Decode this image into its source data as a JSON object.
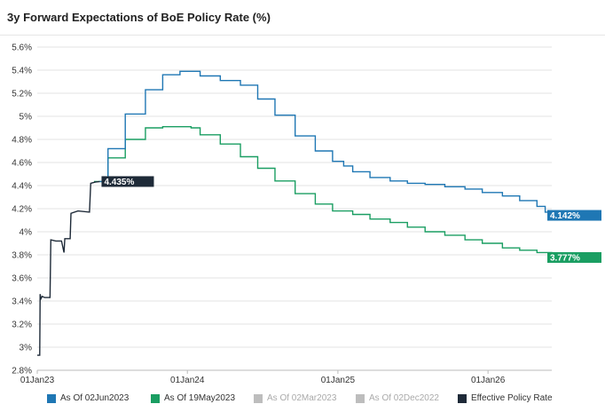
{
  "title": "3y Forward Expectations of BoE Policy Rate (%)",
  "legend": [
    {
      "label": "As Of 02Jun2023",
      "color": "#1f77b4",
      "active": true
    },
    {
      "label": "As Of 19May2023",
      "color": "#1a9e62",
      "active": true
    },
    {
      "label": "As Of 02Mar2023",
      "color": "#bdbdbd",
      "active": false
    },
    {
      "label": "As Of 02Dec2022",
      "color": "#bdbdbd",
      "active": false
    },
    {
      "label": "Effective Policy Rate",
      "color": "#1e2a38",
      "active": true
    }
  ],
  "chart_data": {
    "type": "line",
    "title": "3y Forward Expectations of BoE Policy Rate (%)",
    "xlabel": "",
    "ylabel": "",
    "x_ticks": [
      "01Jan23",
      "01Jan24",
      "01Jan25",
      "01Jan26"
    ],
    "x_range": [
      "2023-01-01",
      "2026-06-05"
    ],
    "ylim": [
      2.8,
      5.6
    ],
    "y_ticks": [
      "2.8%",
      "3%",
      "3.2%",
      "3.4%",
      "3.6%",
      "3.8%",
      "4%",
      "4.2%",
      "4.4%",
      "4.6%",
      "4.8%",
      "5%",
      "5.2%",
      "5.4%",
      "5.6%"
    ],
    "grid": "horizontal",
    "legend_position": "bottom",
    "series": [
      {
        "name": "Effective Policy Rate",
        "color": "#1e2a38",
        "step": false,
        "points": [
          [
            "2023-01-01",
            2.93
          ],
          [
            "2023-01-07",
            2.93
          ],
          [
            "2023-01-08",
            3.46
          ],
          [
            "2023-01-10",
            3.42
          ],
          [
            "2023-01-13",
            3.44
          ],
          [
            "2023-01-19",
            3.43
          ],
          [
            "2023-02-01",
            3.43
          ],
          [
            "2023-02-03",
            3.93
          ],
          [
            "2023-02-15",
            3.92
          ],
          [
            "2023-03-01",
            3.92
          ],
          [
            "2023-03-07",
            3.82
          ],
          [
            "2023-03-09",
            3.94
          ],
          [
            "2023-03-22",
            3.94
          ],
          [
            "2023-03-24",
            4.16
          ],
          [
            "2023-04-10",
            4.18
          ],
          [
            "2023-05-08",
            4.17
          ],
          [
            "2023-05-11",
            4.42
          ],
          [
            "2023-05-22",
            4.43
          ],
          [
            "2023-06-02",
            4.435
          ]
        ],
        "end_label": "4.435%"
      },
      {
        "name": "As Of 02Jun2023",
        "color": "#1f77b4",
        "step": true,
        "points": [
          [
            "2023-06-02",
            4.435
          ],
          [
            "2023-06-22",
            4.72
          ],
          [
            "2023-08-03",
            5.02
          ],
          [
            "2023-09-21",
            5.23
          ],
          [
            "2023-11-02",
            5.36
          ],
          [
            "2023-12-14",
            5.39
          ],
          [
            "2024-02-01",
            5.35
          ],
          [
            "2024-03-21",
            5.31
          ],
          [
            "2024-05-09",
            5.27
          ],
          [
            "2024-06-20",
            5.15
          ],
          [
            "2024-08-01",
            5.01
          ],
          [
            "2024-09-19",
            4.83
          ],
          [
            "2024-11-07",
            4.7
          ],
          [
            "2024-12-19",
            4.61
          ],
          [
            "2025-01-15",
            4.57
          ],
          [
            "2025-02-06",
            4.52
          ],
          [
            "2025-03-20",
            4.47
          ],
          [
            "2025-05-08",
            4.44
          ],
          [
            "2025-06-19",
            4.42
          ],
          [
            "2025-08-01",
            4.41
          ],
          [
            "2025-09-18",
            4.39
          ],
          [
            "2025-11-06",
            4.37
          ],
          [
            "2025-12-18",
            4.34
          ],
          [
            "2026-02-05",
            4.31
          ],
          [
            "2026-03-19",
            4.27
          ],
          [
            "2026-04-30",
            4.22
          ],
          [
            "2026-05-20",
            4.17
          ],
          [
            "2026-06-05",
            4.142
          ]
        ],
        "end_label": "4.142%"
      },
      {
        "name": "As Of 19May2023",
        "color": "#1a9e62",
        "step": true,
        "points": [
          [
            "2023-05-19",
            4.435
          ],
          [
            "2023-06-22",
            4.64
          ],
          [
            "2023-08-03",
            4.8
          ],
          [
            "2023-09-21",
            4.9
          ],
          [
            "2023-11-02",
            4.91
          ],
          [
            "2024-01-10",
            4.9
          ],
          [
            "2024-02-01",
            4.84
          ],
          [
            "2024-03-21",
            4.76
          ],
          [
            "2024-05-09",
            4.65
          ],
          [
            "2024-06-20",
            4.55
          ],
          [
            "2024-08-01",
            4.44
          ],
          [
            "2024-09-19",
            4.33
          ],
          [
            "2024-11-07",
            4.24
          ],
          [
            "2024-12-19",
            4.18
          ],
          [
            "2025-02-06",
            4.15
          ],
          [
            "2025-03-20",
            4.11
          ],
          [
            "2025-05-08",
            4.08
          ],
          [
            "2025-06-19",
            4.04
          ],
          [
            "2025-08-01",
            4.0
          ],
          [
            "2025-09-18",
            3.97
          ],
          [
            "2025-11-06",
            3.93
          ],
          [
            "2025-12-18",
            3.9
          ],
          [
            "2026-02-05",
            3.86
          ],
          [
            "2026-03-19",
            3.84
          ],
          [
            "2026-04-30",
            3.82
          ],
          [
            "2026-06-05",
            3.777
          ]
        ],
        "end_label": "3.777%"
      }
    ]
  }
}
